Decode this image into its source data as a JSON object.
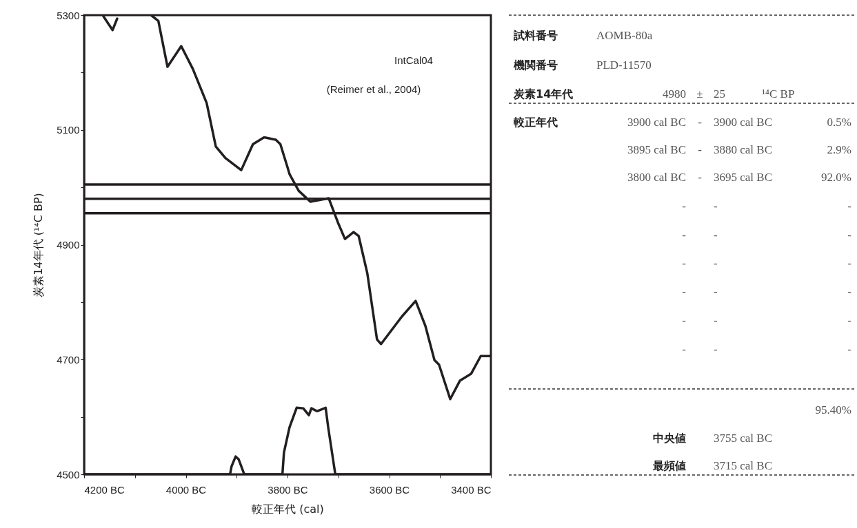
{
  "chart_data": [
    {
      "type": "line",
      "xlabel": "較正年代 (cal)",
      "ylabel": "炭素14年代 (¹⁴C BP)",
      "xlim": [
        4200,
        3400
      ],
      "xticks": [
        {
          "value": 4200,
          "label": "4200 BC"
        },
        {
          "value": 4100,
          "label": null
        },
        {
          "value": 4000,
          "label": "4000 BC"
        },
        {
          "value": 3900,
          "label": null
        },
        {
          "value": 3800,
          "label": "3800 BC"
        },
        {
          "value": 3700,
          "label": null
        },
        {
          "value": 3600,
          "label": "3600 BC"
        },
        {
          "value": 3500,
          "label": null
        },
        {
          "value": 3400,
          "label": "3400 BC"
        }
      ],
      "ylim": [
        4500,
        5300
      ],
      "yticks": [
        4500,
        {
          "value": 4600,
          "label": null
        },
        4700,
        {
          "value": 4800,
          "label": null
        },
        4900,
        {
          "value": 5000,
          "label": null
        },
        5100,
        {
          "value": 5200,
          "label": null
        },
        5300
      ],
      "series": [
        {
          "color": "#231f20",
          "x": [
            4162,
            4144,
            4135,
            4125,
            4067,
            4054,
            4036,
            4009,
            3986,
            3959,
            3941,
            3922,
            3891,
            3868,
            3846,
            3823,
            3814,
            3800,
            3796,
            3778,
            3755,
            3719,
            3701,
            3687,
            3670,
            3660,
            3643,
            3624,
            3616,
            3575,
            3548,
            3529,
            3511,
            3502,
            3480,
            3461,
            3439,
            3420,
            3400
          ],
          "values": [
            5298,
            5274,
            5294,
            null,
            5299,
            5290,
            5210,
            5246,
            5206,
            5147,
            5071,
            5051,
            5030,
            5075,
            5087,
            5083,
            5075,
            5035,
            5023,
            4994,
            4975,
            4981,
            4939,
            4910,
            4922,
            4915,
            4850,
            4735,
            4727,
            4775,
            4802,
            4759,
            4699,
            4691,
            4631,
            4663,
            4675,
            4706,
            4706
          ]
        },
        {
          "color": "#231f20",
          "x": [
            4200,
            3913,
            3910,
            3902,
            3896,
            3885,
            3810,
            3807,
            3796,
            3782,
            3769,
            3758,
            3753,
            3742,
            3725,
            3720,
            3706,
            3400
          ],
          "values": [
            4500,
            4500,
            4514,
            4531,
            4526,
            4500,
            4500,
            4538,
            4582,
            4616,
            4615,
            4603,
            4615,
            4610,
            4616,
            4582,
            4500,
            4500
          ]
        }
      ],
      "ref_lines": [
        {
          "axis": "y",
          "value": 5005,
          "label": null,
          "color": "#231f20"
        },
        {
          "axis": "y",
          "value": 4980,
          "label": null,
          "color": "#231f20"
        },
        {
          "axis": "y",
          "value": 4955,
          "label": null,
          "color": "#231f20"
        }
      ],
      "annotations": [
        "IntCal04",
        "(Reimer et al., 2004)"
      ]
    },
    {
      "type": "other",
      "annotations": [
        "試料番号",
        "AOMB-80a",
        "機関番号",
        "PLD-11570",
        "炭素14年代",
        "4980",
        "±",
        "25",
        "¹⁴C BP",
        "較正年代",
        "3900 cal BC",
        "-",
        "3900 cal BC",
        "0.5%",
        "3895 cal BC",
        "-",
        "3880 cal BC",
        "2.9%",
        "3800 cal BC",
        "-",
        "3695 cal BC",
        "92.0%",
        "-",
        "-",
        "-",
        "-",
        "-",
        "-",
        "-",
        "-",
        "-",
        "-",
        "-",
        "-",
        "-",
        "-",
        "-",
        "-",
        "-",
        "-",
        "95.40%",
        "中央値",
        "3755 cal BC",
        "最頻値",
        "3715 cal BC"
      ]
    }
  ]
}
